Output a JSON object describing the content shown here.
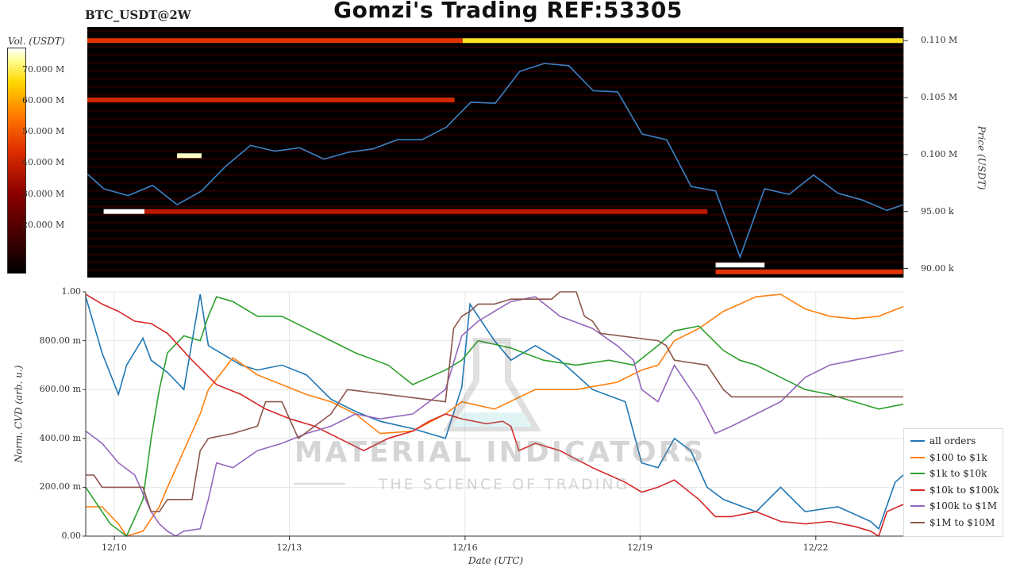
{
  "title": "Gomzi's Trading REF:53305",
  "symbol": "BTC_USDT@2W",
  "colors": {
    "price_line": "#3b82c4",
    "heatmap_bg": "#000000"
  },
  "colorbar": {
    "label": "Vol. (USDT)",
    "ticks": [
      "70.000 M",
      "60.000 M",
      "50.000 M",
      "40.000 M",
      "30.000 M",
      "20.000 M"
    ],
    "tick_values": [
      70,
      60,
      50,
      40,
      30,
      20
    ],
    "range": [
      5,
      77
    ]
  },
  "watermark": {
    "line1": "MATERIAL INDICATORS",
    "line2": "THE SCIENCE OF TRADING"
  },
  "chart_data": [
    {
      "type": "heatmap",
      "ylabel": "Price (USDT)",
      "ylim": [
        89200,
        111200
      ],
      "y_ticks": [
        90000,
        95000,
        100000,
        105000,
        110000
      ],
      "y_tick_labels": [
        "90.00 k",
        "95.00 k",
        "0.100 M",
        "0.105 M",
        "0.110 M"
      ],
      "price_series": {
        "x": [
          0,
          2,
          5,
          8,
          11,
          14,
          17,
          20,
          23,
          26,
          29,
          32,
          35,
          38,
          41,
          44,
          47,
          50,
          53,
          56,
          59,
          62,
          65,
          68,
          71,
          74,
          77,
          80,
          83,
          86,
          89,
          92,
          95,
          98,
          100
        ],
        "y": [
          98300,
          97000,
          96400,
          97300,
          95600,
          96800,
          99000,
          100800,
          100300,
          100600,
          99600,
          100200,
          100500,
          101300,
          101300,
          102400,
          104600,
          104500,
          107300,
          108000,
          107800,
          105600,
          105500,
          101800,
          101300,
          97200,
          96800,
          91000,
          97000,
          96500,
          98200,
          96600,
          96000,
          95100,
          95600
        ]
      },
      "liquidity_bands": [
        {
          "price": 110000,
          "x": [
            0,
            46
          ],
          "vol": 45
        },
        {
          "price": 110000,
          "x": [
            46,
            100
          ],
          "vol": 68
        },
        {
          "price": 104800,
          "x": [
            0,
            45
          ],
          "vol": 42
        },
        {
          "price": 99900,
          "x": [
            11,
            14
          ],
          "vol": 75
        },
        {
          "price": 95000,
          "x": [
            2,
            7
          ],
          "vol": 77
        },
        {
          "price": 95000,
          "x": [
            7,
            76
          ],
          "vol": 38
        },
        {
          "price": 90300,
          "x": [
            77,
            83
          ],
          "vol": 77
        },
        {
          "price": 89700,
          "x": [
            77,
            100
          ],
          "vol": 45
        }
      ]
    },
    {
      "type": "line",
      "xlabel": "Date (UTC)",
      "ylabel": "Norm. CVD (arb. u.)",
      "ylim": [
        0,
        1
      ],
      "xlim": [
        0,
        100
      ],
      "y_ticks": [
        0,
        0.2,
        0.4,
        0.6,
        0.8,
        1.0
      ],
      "y_tick_labels": [
        "0.00",
        "200.00 m",
        "400.00 m",
        "600.00 m",
        "800.00 m",
        "1.00"
      ],
      "x_ticks": [
        3.5,
        24.9,
        46.4,
        67.8,
        89.3
      ],
      "x_tick_labels": [
        "12/10",
        "12/13",
        "12/16",
        "12/19",
        "12/22"
      ],
      "series": [
        {
          "name": "all orders",
          "color": "#1f77b4",
          "x": [
            0,
            2,
            4,
            5,
            7,
            8,
            10,
            12,
            14,
            15,
            17,
            19,
            21,
            24,
            27,
            30,
            33,
            36,
            40,
            44,
            46,
            47,
            50,
            52,
            55,
            58,
            62,
            66,
            68,
            70,
            72,
            74,
            76,
            78,
            82,
            85,
            88,
            92,
            96,
            97,
            99,
            100
          ],
          "y": [
            0.98,
            0.75,
            0.58,
            0.7,
            0.81,
            0.72,
            0.67,
            0.6,
            0.99,
            0.78,
            0.74,
            0.7,
            0.68,
            0.7,
            0.66,
            0.56,
            0.51,
            0.47,
            0.44,
            0.4,
            0.61,
            0.95,
            0.8,
            0.72,
            0.78,
            0.72,
            0.6,
            0.55,
            0.3,
            0.28,
            0.4,
            0.35,
            0.2,
            0.15,
            0.1,
            0.2,
            0.1,
            0.12,
            0.06,
            0.03,
            0.22,
            0.25
          ]
        },
        {
          "name": "$100 to $1k",
          "color": "#ff7f0e",
          "x": [
            0,
            2,
            4,
            5,
            7,
            9,
            10,
            12,
            14,
            15,
            18,
            21,
            24,
            27,
            30,
            33,
            36,
            40,
            44,
            46,
            50,
            55,
            60,
            65,
            68,
            70,
            72,
            75,
            78,
            82,
            85,
            88,
            91,
            94,
            97,
            100
          ],
          "y": [
            0.12,
            0.12,
            0.05,
            0.0,
            0.02,
            0.12,
            0.2,
            0.35,
            0.5,
            0.6,
            0.73,
            0.66,
            0.62,
            0.58,
            0.55,
            0.5,
            0.42,
            0.43,
            0.5,
            0.55,
            0.52,
            0.6,
            0.6,
            0.63,
            0.68,
            0.7,
            0.8,
            0.85,
            0.92,
            0.98,
            0.99,
            0.93,
            0.9,
            0.89,
            0.9,
            0.94
          ]
        },
        {
          "name": "$1k to $10k",
          "color": "#2ca02c",
          "x": [
            0,
            2,
            3,
            5,
            7,
            8,
            9,
            10,
            12,
            14,
            15,
            16,
            18,
            21,
            24,
            27,
            30,
            33,
            37,
            40,
            44,
            46,
            48,
            52,
            56,
            60,
            64,
            67,
            70,
            72,
            75,
            78,
            80,
            82,
            85,
            88,
            91,
            94,
            97,
            100
          ],
          "y": [
            0.2,
            0.1,
            0.05,
            0.0,
            0.15,
            0.4,
            0.6,
            0.75,
            0.82,
            0.8,
            0.9,
            0.98,
            0.96,
            0.9,
            0.9,
            0.85,
            0.8,
            0.75,
            0.7,
            0.62,
            0.68,
            0.72,
            0.8,
            0.77,
            0.72,
            0.7,
            0.72,
            0.7,
            0.78,
            0.84,
            0.86,
            0.76,
            0.72,
            0.7,
            0.65,
            0.6,
            0.58,
            0.55,
            0.52,
            0.54
          ]
        },
        {
          "name": "$10k to $100k",
          "color": "#d62728",
          "x": [
            0,
            2,
            4,
            6,
            8,
            10,
            13,
            16,
            19,
            22,
            25,
            28,
            31,
            34,
            37,
            40,
            42,
            44,
            46,
            49,
            51,
            52,
            53,
            55,
            58,
            62,
            66,
            68,
            70,
            72,
            75,
            77,
            79,
            82,
            85,
            88,
            91,
            94,
            96,
            97,
            98,
            100
          ],
          "y": [
            0.99,
            0.95,
            0.92,
            0.88,
            0.87,
            0.83,
            0.72,
            0.62,
            0.58,
            0.52,
            0.48,
            0.45,
            0.4,
            0.35,
            0.4,
            0.43,
            0.47,
            0.5,
            0.48,
            0.46,
            0.47,
            0.45,
            0.35,
            0.38,
            0.35,
            0.28,
            0.22,
            0.18,
            0.2,
            0.23,
            0.15,
            0.08,
            0.08,
            0.1,
            0.06,
            0.05,
            0.06,
            0.04,
            0.02,
            0.0,
            0.1,
            0.13
          ]
        },
        {
          "name": "$100k to $1M",
          "color": "#9467bd",
          "x": [
            0,
            2,
            4,
            6,
            8,
            9,
            10,
            11,
            12,
            14,
            15,
            16,
            18,
            21,
            24,
            27,
            30,
            33,
            36,
            40,
            44,
            46,
            48,
            50,
            52,
            55,
            58,
            62,
            65,
            67,
            68,
            70,
            72,
            75,
            77,
            79,
            82,
            85,
            88,
            91,
            94,
            97,
            100
          ],
          "y": [
            0.43,
            0.38,
            0.3,
            0.25,
            0.1,
            0.05,
            0.02,
            0.0,
            0.02,
            0.03,
            0.15,
            0.3,
            0.28,
            0.35,
            0.38,
            0.42,
            0.45,
            0.5,
            0.48,
            0.5,
            0.6,
            0.82,
            0.88,
            0.92,
            0.96,
            0.98,
            0.9,
            0.85,
            0.78,
            0.72,
            0.6,
            0.55,
            0.7,
            0.55,
            0.42,
            0.45,
            0.5,
            0.55,
            0.65,
            0.7,
            0.72,
            0.74,
            0.76
          ]
        },
        {
          "name": "$1M to $10M",
          "color": "#8c564b",
          "x": [
            0,
            1,
            2,
            3,
            4,
            7,
            8,
            9,
            10,
            13,
            14,
            15,
            18,
            21,
            22,
            24,
            26,
            28,
            30,
            31,
            32,
            44,
            45,
            46,
            47,
            48,
            50,
            52,
            57,
            58,
            60,
            61,
            62,
            63,
            70,
            71,
            72,
            76,
            78,
            79,
            80,
            85,
            90,
            95,
            100
          ],
          "y": [
            0.25,
            0.25,
            0.2,
            0.2,
            0.2,
            0.2,
            0.1,
            0.1,
            0.15,
            0.15,
            0.35,
            0.4,
            0.42,
            0.45,
            0.55,
            0.55,
            0.4,
            0.45,
            0.5,
            0.55,
            0.6,
            0.55,
            0.85,
            0.9,
            0.92,
            0.95,
            0.95,
            0.97,
            0.97,
            1.0,
            1.0,
            0.9,
            0.88,
            0.83,
            0.8,
            0.78,
            0.72,
            0.7,
            0.6,
            0.57,
            0.57,
            0.57,
            0.57,
            0.57,
            0.57
          ]
        }
      ]
    }
  ]
}
